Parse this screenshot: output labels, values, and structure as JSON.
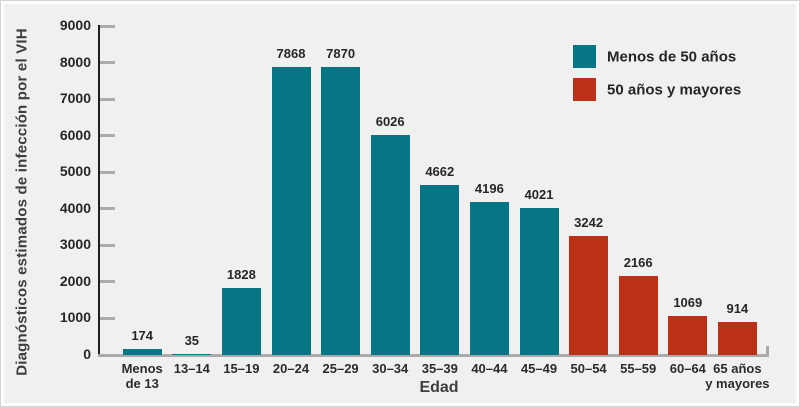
{
  "chart_data": {
    "type": "bar",
    "title": "",
    "xlabel": "Edad",
    "ylabel": "Diagnósticos estimados de infección por el VIH",
    "ylim": [
      0,
      9000
    ],
    "ytick_interval": 1000,
    "grid": false,
    "legend_position": "top-right",
    "categories": [
      "Menos\nde 13",
      "13–14",
      "15–19",
      "20–24",
      "25–29",
      "30–34",
      "35–39",
      "40–44",
      "45–49",
      "50–54",
      "55–59",
      "60–64",
      "65 años\ny mayores"
    ],
    "values": [
      174,
      35,
      1828,
      7868,
      7870,
      6026,
      4662,
      4196,
      4021,
      3242,
      2166,
      1069,
      914
    ],
    "series": [
      {
        "name": "Menos de 50 años",
        "color": "#067687",
        "category_indexes": [
          0,
          1,
          2,
          3,
          4,
          5,
          6,
          7,
          8
        ]
      },
      {
        "name": "50 años y mayores",
        "color": "#bd3018",
        "category_indexes": [
          9,
          10,
          11,
          12
        ]
      }
    ],
    "legend_entries": [
      {
        "label": "Menos de 50 años",
        "color": "#067687"
      },
      {
        "label": "50 años y mayores",
        "color": "#bd3018"
      }
    ]
  },
  "colors": {
    "panel_background": "#f0f0f1",
    "panel_border": "#d2d2d2",
    "axis_line": "#231f20",
    "tick_line": "#ababab",
    "text": "#262626"
  }
}
